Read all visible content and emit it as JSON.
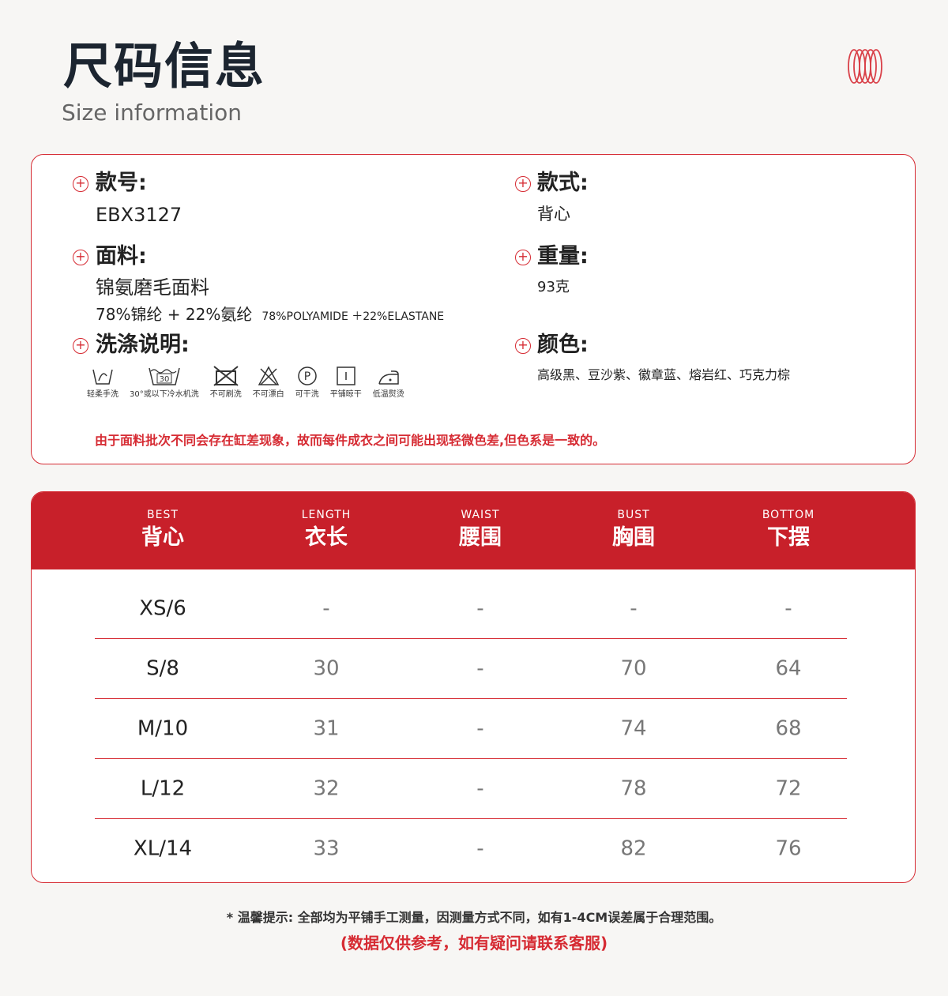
{
  "header": {
    "title": "尺码信息",
    "subtitle": "Size information"
  },
  "colors": {
    "accent": "#c8202a",
    "text": "#1c2530"
  },
  "info": {
    "style_no_label": "款号:",
    "style_no": "EBX3127",
    "style_label": "款式:",
    "style": "背心",
    "fabric_label": "面料:",
    "fabric": "锦氨磨毛面料",
    "composition_cn": "78%锦纶 + 22%氨纶",
    "composition_en": "78%POLYAMIDE ＋22%ELASTANE",
    "weight_label": "重量:",
    "weight": "93克",
    "care_label": "洗涤说明:",
    "color_label": "颜色:",
    "colors": "高级黑、豆沙紫、徽章蓝、熔岩红、巧克力棕",
    "care": [
      {
        "icon": "hand-wash-icon",
        "label": "轻柔手洗"
      },
      {
        "icon": "machine-wash-30-icon",
        "label": "30°或以下冷水机洗",
        "temp": "30"
      },
      {
        "icon": "no-brush-icon",
        "label": "不可刷洗"
      },
      {
        "icon": "no-bleach-icon",
        "label": "不可漂白"
      },
      {
        "icon": "dry-clean-p-icon",
        "label": "可干洗",
        "letter": "P"
      },
      {
        "icon": "dry-flat-icon",
        "label": "平铺晾干"
      },
      {
        "icon": "low-iron-icon",
        "label": "低温熨烫"
      }
    ],
    "warning": "由于面料批次不同会存在缸差现象，故而每件成衣之间可能出现轻微色差,但色系是一致的。"
  },
  "table": {
    "headers": [
      {
        "en": "BEST",
        "zh": "背心"
      },
      {
        "en": "LENGTH",
        "zh": "衣长"
      },
      {
        "en": "WAIST",
        "zh": "腰围"
      },
      {
        "en": "BUST",
        "zh": "胸围"
      },
      {
        "en": "BOTTOM",
        "zh": "下摆"
      }
    ],
    "rows": [
      [
        "XS/6",
        "-",
        "-",
        "-",
        "-"
      ],
      [
        "S/8",
        "30",
        "-",
        "70",
        "64"
      ],
      [
        "M/10",
        "31",
        "-",
        "74",
        "68"
      ],
      [
        "L/12",
        "32",
        "-",
        "78",
        "72"
      ],
      [
        "XL/14",
        "33",
        "-",
        "82",
        "76"
      ]
    ]
  },
  "footer": {
    "note": "* 温馨提示: 全部均为平铺手工测量，因测量方式不同，如有1-4CM误差属于合理范围。",
    "note2": "(数据仅供参考，如有疑问请联系客服)"
  }
}
